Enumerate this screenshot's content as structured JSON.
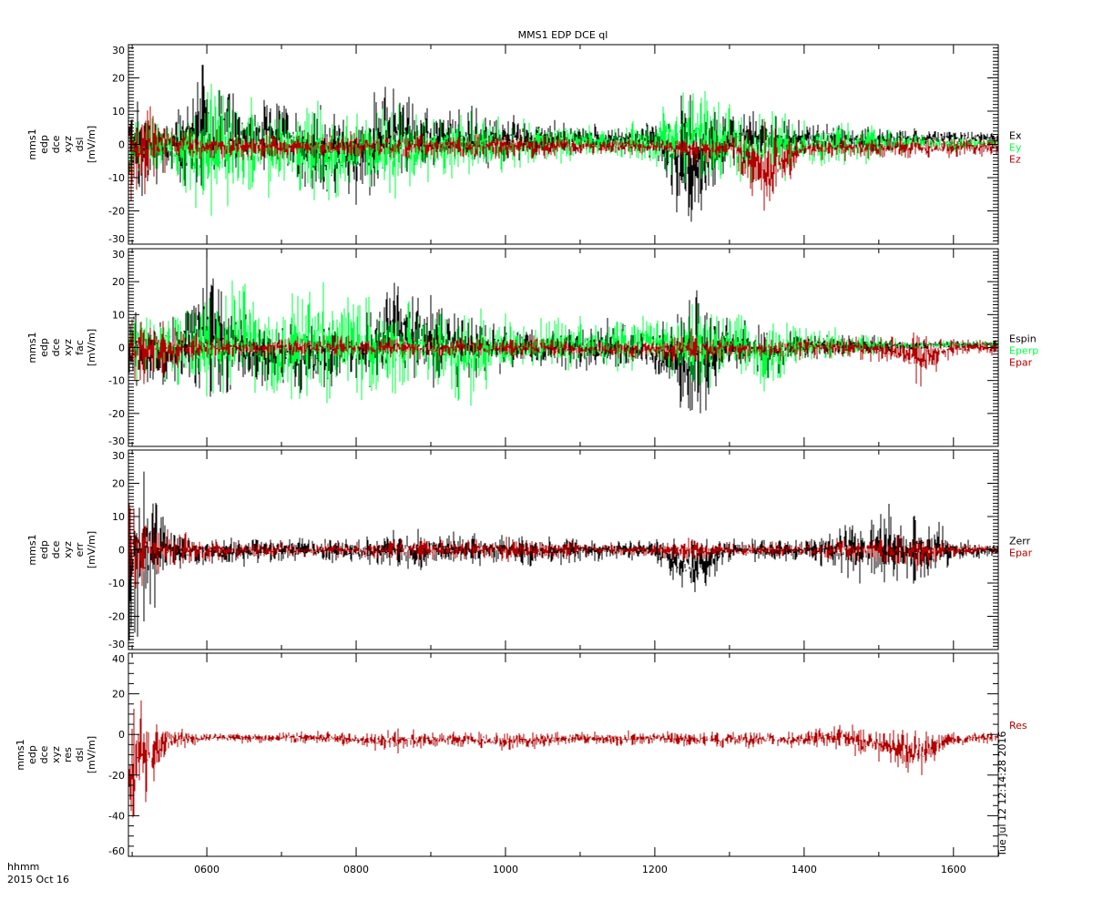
{
  "chart_data": {
    "type": "line",
    "title": "MMS1 EDP DCE ql",
    "xlabel": "hhmm",
    "date_label": "2015 Oct 16",
    "timestamp": "Tue Jul 12 12:14:28 2016",
    "xlim": [
      4.95,
      16.6
    ],
    "x_ticks": [
      6,
      8,
      10,
      12,
      14,
      16
    ],
    "x_tick_labels": [
      "0600",
      "0800",
      "1000",
      "1200",
      "1400",
      "1600"
    ],
    "envelope_times": [
      5.0,
      5.5,
      6.0,
      6.5,
      7.0,
      7.5,
      8.0,
      8.5,
      9.0,
      9.5,
      10.0,
      10.5,
      11.0,
      11.5,
      12.0,
      12.5,
      13.0,
      13.5,
      14.0,
      14.5,
      15.0,
      15.5,
      16.0,
      16.5
    ],
    "panels": [
      {
        "ylabel_lines": [
          "mms1",
          "edp",
          "dce",
          "xyz",
          "dsl",
          "[mV/m]"
        ],
        "ylim": [
          -30,
          30
        ],
        "y_ticks": [
          -30,
          -20,
          -10,
          0,
          10,
          20,
          30
        ],
        "y_tick_labels": [
          "-30",
          "-20",
          "-10",
          "0",
          "10",
          "20",
          "30"
        ],
        "minor_step": 1,
        "series": [
          {
            "name": "Ex",
            "color": "#000000",
            "upper": [
              12,
              8,
              24,
              10,
              12,
              10,
              8,
              18,
              8,
              10,
              8,
              7,
              6,
              5,
              6,
              12,
              9,
              8,
              6,
              6,
              5,
              4,
              4,
              4
            ],
            "lower": [
              -14,
              -10,
              -15,
              -5,
              -6,
              -15,
              -17,
              -10,
              -5,
              -7,
              -4,
              -3,
              -2,
              -2,
              -3,
              -28,
              -5,
              -4,
              -2,
              -2,
              -2,
              -1,
              0,
              0
            ]
          },
          {
            "name": "Ey",
            "color": "#00ff40",
            "upper": [
              8,
              6,
              15,
              12,
              10,
              12,
              8,
              10,
              8,
              8,
              6,
              6,
              5,
              4,
              8,
              18,
              10,
              10,
              6,
              6,
              5,
              3,
              2,
              2
            ],
            "lower": [
              -10,
              -8,
              -20,
              -15,
              -12,
              -17,
              -12,
              -14,
              -10,
              -8,
              -7,
              -5,
              -4,
              -3,
              -5,
              -10,
              -10,
              -12,
              -6,
              -6,
              -4,
              -2,
              -2,
              -1
            ]
          },
          {
            "name": "Ez",
            "color": "#b00000",
            "upper": [
              11,
              6,
              4,
              3,
              3,
              3,
              3,
              3,
              3,
              3,
              3,
              3,
              2,
              2,
              2,
              3,
              3,
              3,
              2,
              2,
              2,
              2,
              2,
              2
            ],
            "lower": [
              -16,
              -6,
              -5,
              -4,
              -4,
              -4,
              -4,
              -4,
              -4,
              -4,
              -4,
              -4,
              -3,
              -3,
              -3,
              -6,
              -4,
              -20,
              -4,
              -4,
              -4,
              -4,
              -4,
              -3
            ]
          }
        ]
      },
      {
        "ylabel_lines": [
          "mms1",
          "edp",
          "dce",
          "xyz",
          "fac",
          "[mV/m]"
        ],
        "ylim": [
          -30,
          30
        ],
        "y_ticks": [
          -30,
          -20,
          -10,
          0,
          10,
          20,
          30
        ],
        "y_tick_labels": [
          "-30",
          "-20",
          "-10",
          "0",
          "10",
          "20",
          "30"
        ],
        "minor_step": 1,
        "series": [
          {
            "name": "Espin",
            "color": "#000000",
            "upper": [
              10,
              6,
              28,
              8,
              6,
              6,
              6,
              18,
              14,
              8,
              6,
              5,
              6,
              8,
              4,
              15,
              8,
              6,
              4,
              4,
              3,
              2,
              2,
              2
            ],
            "lower": [
              -12,
              -10,
              -15,
              -10,
              -12,
              -12,
              -10,
              -10,
              -10,
              -10,
              -6,
              -6,
              -6,
              -7,
              -8,
              -21,
              -6,
              -8,
              -3,
              -3,
              -2,
              -1,
              0,
              0
            ]
          },
          {
            "name": "Eperp",
            "color": "#00ff40",
            "upper": [
              12,
              10,
              13,
              18,
              10,
              20,
              14,
              12,
              10,
              10,
              8,
              8,
              8,
              8,
              8,
              12,
              10,
              8,
              5,
              5,
              3,
              2,
              2,
              2
            ],
            "lower": [
              -10,
              -8,
              -14,
              -12,
              -14,
              -16,
              -14,
              -12,
              -10,
              -16,
              -8,
              -6,
              -6,
              -6,
              -4,
              -12,
              -8,
              -14,
              -3,
              -3,
              -2,
              -1,
              0,
              0
            ]
          },
          {
            "name": "Epar",
            "color": "#b00000",
            "upper": [
              11,
              6,
              3,
              3,
              3,
              3,
              3,
              3,
              3,
              3,
              3,
              3,
              2,
              2,
              2,
              5,
              3,
              3,
              3,
              3,
              3,
              4,
              2,
              2
            ],
            "lower": [
              -12,
              -6,
              -3,
              -3,
              -3,
              -3,
              -3,
              -3,
              -3,
              -3,
              -3,
              -3,
              -3,
              -3,
              -3,
              -6,
              -3,
              -4,
              -3,
              -3,
              -4,
              -11,
              -2,
              -2
            ]
          }
        ]
      },
      {
        "ylabel_lines": [
          "mms1",
          "edp",
          "dce",
          "xyz",
          "err",
          "[mV/m]"
        ],
        "ylim": [
          -30,
          30
        ],
        "y_ticks": [
          -30,
          -20,
          -10,
          0,
          10,
          20,
          30
        ],
        "y_tick_labels": [
          "-30",
          "-20",
          "-10",
          "0",
          "10",
          "20",
          "30"
        ],
        "minor_step": 1,
        "series": [
          {
            "name": "Zerr",
            "color": "#000000",
            "upper": [
              28,
              5,
              3,
              3,
              3,
              3,
              3,
              5,
              5,
              4,
              4,
              4,
              3,
              3,
              3,
              3,
              3,
              3,
              3,
              6,
              10,
              12,
              3,
              2
            ],
            "lower": [
              -28,
              -5,
              -4,
              -4,
              -3,
              -3,
              -4,
              -5,
              -5,
              -4,
              -4,
              -4,
              -3,
              -3,
              -3,
              -14,
              -3,
              -3,
              -3,
              -6,
              -10,
              -12,
              -3,
              -2
            ]
          },
          {
            "name": "Epar",
            "color": "#b00000",
            "upper": [
              12,
              5,
              3,
              2,
              2,
              2,
              2,
              3,
              3,
              3,
              3,
              3,
              2,
              2,
              2,
              3,
              2,
              2,
              2,
              3,
              4,
              4,
              2,
              1
            ],
            "lower": [
              -12,
              -4,
              -3,
              -2,
              -2,
              -2,
              -2,
              -3,
              -3,
              -3,
              -3,
              -3,
              -2,
              -2,
              -2,
              -3,
              -2,
              -2,
              -2,
              -3,
              -4,
              -6,
              -2,
              -1
            ]
          }
        ]
      },
      {
        "ylabel_lines": [
          "mms1",
          "edp",
          "dce",
          "xyz",
          "res",
          "dsl",
          "[mV/m]"
        ],
        "ylim": [
          -60,
          40
        ],
        "y_ticks": [
          -60,
          -40,
          -20,
          0,
          20,
          40
        ],
        "y_tick_labels": [
          "-60",
          "-40",
          "-20",
          "0",
          "20",
          "40"
        ],
        "minor_step": 5,
        "series": [
          {
            "name": "Res",
            "color": "#b00000",
            "upper": [
              20,
              3,
              1,
              1,
              1,
              1,
              1,
              2,
              1,
              1,
              1,
              1,
              1,
              1,
              1,
              1,
              1,
              1,
              1,
              5,
              1,
              1,
              1,
              1
            ],
            "lower": [
              -46,
              -8,
              -4,
              -4,
              -4,
              -4,
              -6,
              -8,
              -6,
              -6,
              -8,
              -6,
              -4,
              -6,
              -4,
              -6,
              -6,
              -6,
              -6,
              -8,
              -12,
              -20,
              -6,
              -4
            ]
          }
        ]
      }
    ]
  }
}
